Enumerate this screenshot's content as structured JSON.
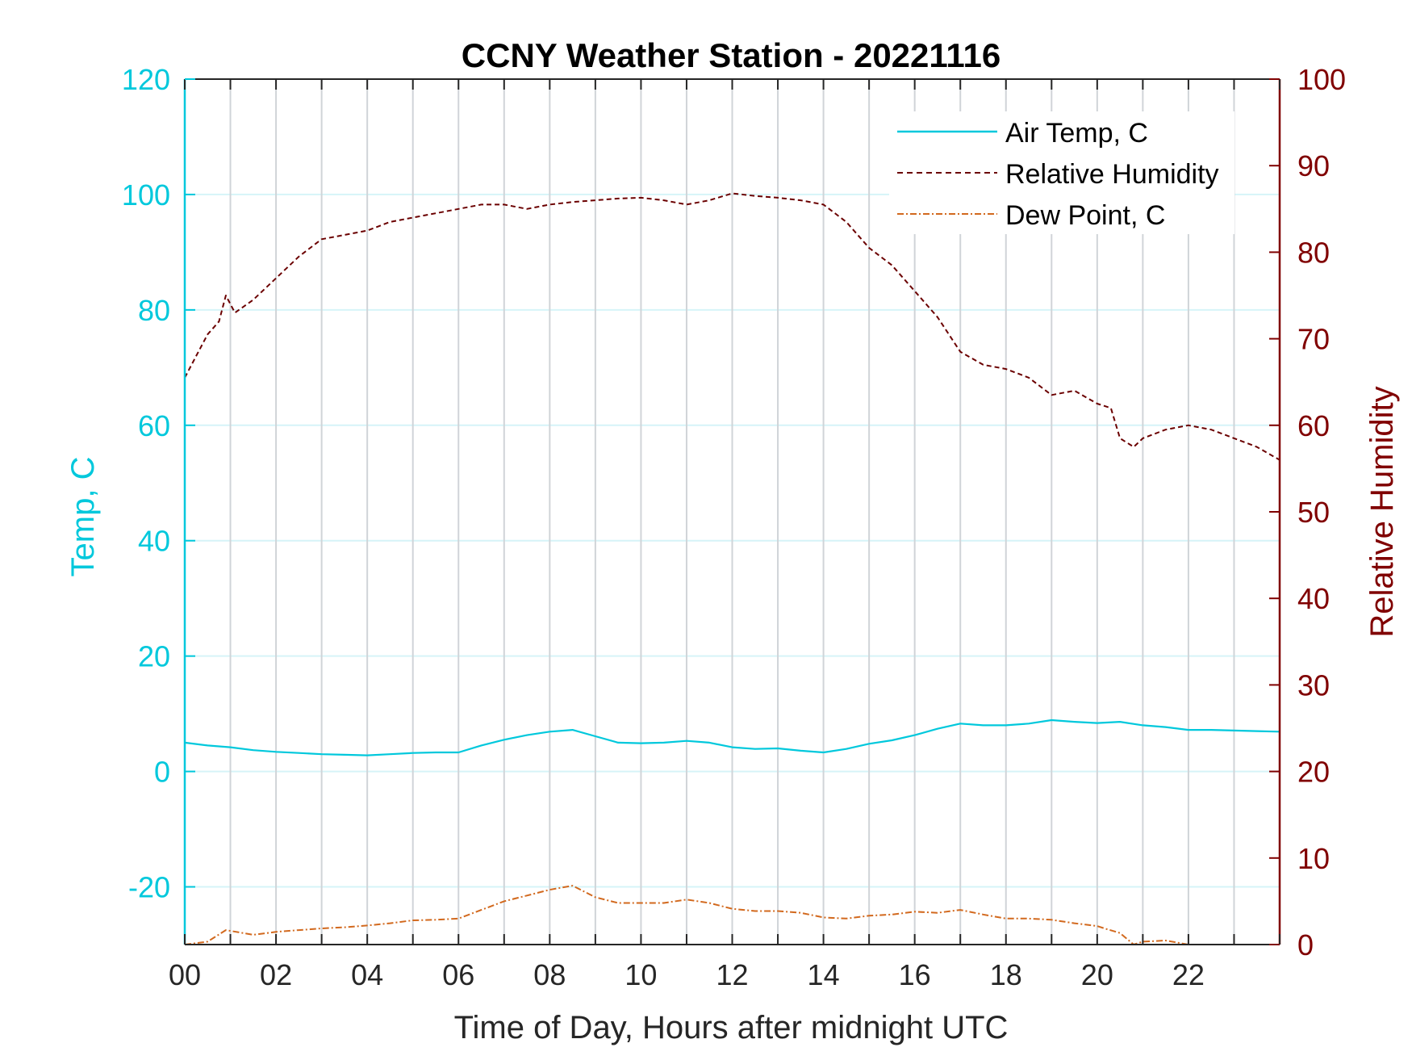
{
  "chart_data": {
    "type": "line",
    "title": "CCNY Weather Station - 20221116",
    "xlabel": "Time of Day, Hours after midnight UTC",
    "ylabel_left": "Temp, C",
    "ylabel_right": "Relative Humidity",
    "xlim": [
      0,
      24
    ],
    "ylim_left": [
      -30,
      120
    ],
    "ylim_right": [
      0,
      100
    ],
    "x_ticks": [
      0,
      2,
      4,
      6,
      8,
      10,
      12,
      14,
      16,
      18,
      20,
      22
    ],
    "x_tick_labels": [
      "00",
      "02",
      "04",
      "06",
      "08",
      "10",
      "12",
      "14",
      "16",
      "18",
      "20",
      "22"
    ],
    "y_left_ticks": [
      -20,
      0,
      20,
      40,
      60,
      80,
      100,
      120
    ],
    "y_left_tick_labels": [
      "-20",
      "0",
      "20",
      "40",
      "60",
      "80",
      "100",
      "120"
    ],
    "y_right_ticks": [
      0,
      10,
      20,
      30,
      40,
      50,
      60,
      70,
      80,
      90,
      100
    ],
    "y_right_tick_labels": [
      "0",
      "10",
      "20",
      "30",
      "40",
      "50",
      "60",
      "70",
      "80",
      "90",
      "100"
    ],
    "grid": true,
    "legend_position": "top-right",
    "colors": {
      "left_axis": "#00c8dc",
      "right_axis": "#800000",
      "air_temp": "#00c8dc",
      "humidity": "#6b0000",
      "dew_point": "#d2691e",
      "grid_vertical": "#d0d4d8",
      "grid_horizontal": "#d6f4f8"
    },
    "series": [
      {
        "name": "Air Temp, C",
        "axis": "left",
        "style": "solid",
        "x": [
          0,
          0.5,
          1,
          1.5,
          2,
          2.5,
          3,
          3.5,
          4,
          4.5,
          5,
          5.5,
          6,
          6.5,
          7,
          7.5,
          8,
          8.5,
          9,
          9.5,
          10,
          10.5,
          11,
          11.5,
          12,
          12.5,
          13,
          13.5,
          14,
          14.5,
          15,
          15.5,
          16,
          16.5,
          17,
          17.5,
          18,
          18.5,
          19,
          19.5,
          20,
          20.5,
          21,
          21.5,
          22,
          22.5,
          23,
          23.5,
          24
        ],
        "values": [
          5.0,
          4.5,
          4.2,
          3.7,
          3.4,
          3.2,
          3.0,
          2.9,
          2.8,
          3.0,
          3.2,
          3.3,
          3.3,
          4.5,
          5.5,
          6.3,
          6.9,
          7.2,
          6.1,
          5.0,
          4.9,
          5.0,
          5.3,
          5.0,
          4.2,
          3.9,
          4.0,
          3.6,
          3.3,
          3.9,
          4.8,
          5.4,
          6.3,
          7.4,
          8.3,
          8.0,
          8.0,
          8.3,
          8.9,
          8.6,
          8.4,
          8.6,
          8.0,
          7.7,
          7.2,
          7.2,
          7.1,
          7.0,
          6.9
        ]
      },
      {
        "name": "Relative Humidity",
        "axis": "right",
        "style": "dashed",
        "x": [
          0,
          0.25,
          0.5,
          0.75,
          0.9,
          1.1,
          1.5,
          2,
          2.5,
          3,
          3.5,
          4,
          4.5,
          5,
          5.5,
          6,
          6.5,
          7,
          7.5,
          8,
          8.5,
          9,
          9.5,
          10,
          10.5,
          11,
          11.5,
          12,
          12.5,
          13,
          13.5,
          14,
          14.5,
          15,
          15.5,
          16,
          16.5,
          17,
          17.5,
          18,
          18.5,
          19,
          19.5,
          20,
          20.3,
          20.5,
          20.8,
          21,
          21.5,
          22,
          22.5,
          23,
          23.5,
          24
        ],
        "values": [
          65.5,
          68,
          70.5,
          72,
          75,
          73,
          74.5,
          77,
          79.5,
          81.5,
          82,
          82.5,
          83.5,
          84,
          84.5,
          85,
          85.5,
          85.5,
          85,
          85.5,
          85.8,
          86,
          86.2,
          86.3,
          86.0,
          85.5,
          86.0,
          86.8,
          86.5,
          86.3,
          86.0,
          85.5,
          83.5,
          80.5,
          78.5,
          75.5,
          72.5,
          68.5,
          67,
          66.5,
          65.5,
          63.5,
          64,
          62.5,
          62,
          58.5,
          57.5,
          58.5,
          59.5,
          60,
          59.5,
          58.5,
          57.5,
          56
        ]
      },
      {
        "name": "Dew Point, C",
        "axis": "left",
        "style": "dash-dot",
        "x": [
          0,
          0.5,
          0.9,
          1.5,
          2,
          2.5,
          3,
          3.5,
          4,
          4.5,
          5,
          5.5,
          6,
          6.5,
          7,
          7.5,
          8,
          8.5,
          9,
          9.5,
          10,
          10.5,
          11,
          11.5,
          12,
          12.5,
          13,
          13.5,
          14,
          14.5,
          15,
          15.5,
          16,
          16.5,
          17,
          17.5,
          18,
          18.5,
          19,
          19.5,
          20,
          20.2,
          20.5,
          20.8,
          21,
          21.5,
          22
        ],
        "values": [
          -30,
          -29.5,
          -27.5,
          -28.3,
          -27.8,
          -27.5,
          -27.2,
          -27.0,
          -26.7,
          -26.3,
          -25.8,
          -25.7,
          -25.5,
          -24.0,
          -22.5,
          -21.5,
          -20.5,
          -19.8,
          -21.8,
          -22.8,
          -22.8,
          -22.8,
          -22.2,
          -22.8,
          -23.8,
          -24.2,
          -24.2,
          -24.5,
          -25.3,
          -25.5,
          -25.0,
          -24.8,
          -24.3,
          -24.5,
          -24.0,
          -24.8,
          -25.5,
          -25.5,
          -25.7,
          -26.3,
          -26.8,
          -27.3,
          -28.0,
          -30.0,
          -29.5,
          -29.3,
          -30.0
        ]
      }
    ]
  }
}
